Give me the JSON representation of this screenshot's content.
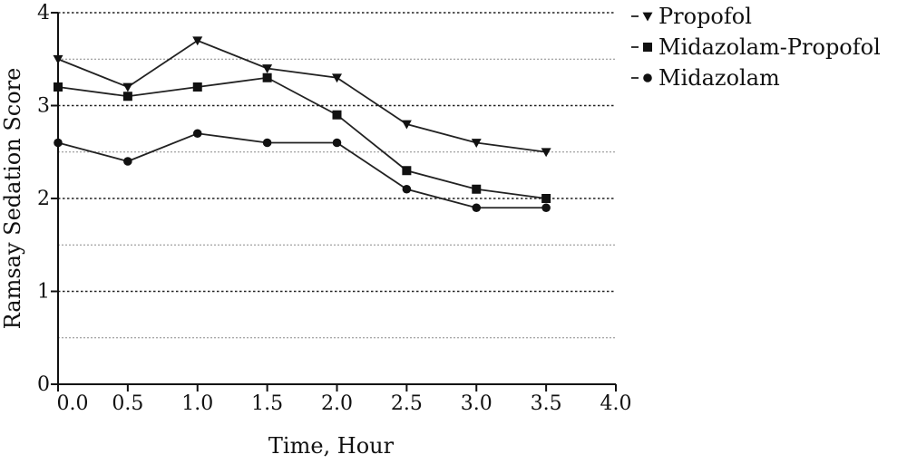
{
  "chart_data": {
    "type": "line",
    "title": "",
    "xlabel": "Time, Hour",
    "ylabel": "Ramsay Sedation Score",
    "xlim": [
      0,
      4.0
    ],
    "ylim": [
      0,
      4
    ],
    "x_ticks": [
      "0.0",
      "0.5",
      "1.0",
      "1.5",
      "2.0",
      "2.5",
      "3.0",
      "3.5",
      "4.0"
    ],
    "y_ticks": [
      "0",
      "1",
      "2",
      "3",
      "4"
    ],
    "grid": "horizontal dotted",
    "legend_position": "top-right",
    "x": [
      0,
      0.5,
      1.0,
      1.5,
      2.0,
      2.5,
      3.0,
      3.5
    ],
    "series": [
      {
        "name": "Propofol",
        "marker": "triangle-down",
        "values": [
          3.5,
          3.2,
          3.7,
          3.4,
          3.3,
          2.8,
          2.6,
          2.5
        ]
      },
      {
        "name": "Midazolam-Propofol",
        "marker": "square",
        "values": [
          3.2,
          3.1,
          3.2,
          3.3,
          2.9,
          2.3,
          2.1,
          2.0
        ]
      },
      {
        "name": "Midazolam",
        "marker": "circle",
        "values": [
          2.6,
          2.4,
          2.7,
          2.6,
          2.6,
          2.1,
          1.9,
          1.9
        ]
      }
    ]
  }
}
